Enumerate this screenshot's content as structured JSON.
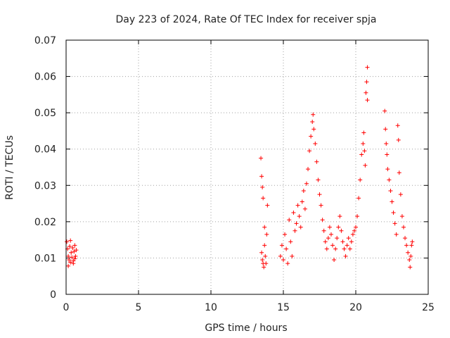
{
  "chart_data": {
    "type": "scatter",
    "title": "Day 223 of 2024, Rate Of TEC Index for receiver spja",
    "xlabel": "GPS time / hours",
    "ylabel": "ROTI / TECUs",
    "xlim": [
      0,
      25
    ],
    "ylim": [
      0,
      0.07
    ],
    "x_ticks": [
      0,
      5,
      10,
      15,
      20,
      25
    ],
    "x_tick_labels": [
      "0",
      "5",
      "10",
      "15",
      "20",
      "25"
    ],
    "y_ticks": [
      0,
      0.01,
      0.02,
      0.03,
      0.04,
      0.05,
      0.06,
      0.07
    ],
    "y_tick_labels": [
      "0",
      "0.01",
      "0.02",
      "0.03",
      "0.04",
      "0.05",
      "0.06",
      "0.07"
    ],
    "grid": true,
    "legend": "none",
    "marker": "+",
    "colors": {
      "series": "#ff0000",
      "grid": "#a0a0a0",
      "frame": "#000000"
    },
    "series": [
      {
        "points": [
          [
            0.05,
            0.0145
          ],
          [
            0.1,
            0.0125
          ],
          [
            0.15,
            0.0105
          ],
          [
            0.2,
            0.0095
          ],
          [
            0.25,
            0.0132
          ],
          [
            0.3,
            0.0088
          ],
          [
            0.35,
            0.0115
          ],
          [
            0.4,
            0.0102
          ],
          [
            0.45,
            0.0128
          ],
          [
            0.5,
            0.0092
          ],
          [
            0.55,
            0.0118
          ],
          [
            0.6,
            0.0135
          ],
          [
            0.65,
            0.0105
          ],
          [
            0.7,
            0.0122
          ],
          [
            0.15,
            0.0078
          ],
          [
            0.3,
            0.0148
          ],
          [
            0.5,
            0.0085
          ],
          [
            0.6,
            0.0098
          ],
          [
            13.45,
            0.0375
          ],
          [
            13.5,
            0.0325
          ],
          [
            13.55,
            0.0295
          ],
          [
            13.6,
            0.0265
          ],
          [
            13.5,
            0.0115
          ],
          [
            13.55,
            0.0095
          ],
          [
            13.6,
            0.0085
          ],
          [
            13.65,
            0.0075
          ],
          [
            13.7,
            0.0135
          ],
          [
            13.75,
            0.0105
          ],
          [
            13.8,
            0.0085
          ],
          [
            13.85,
            0.0165
          ],
          [
            13.9,
            0.0245
          ],
          [
            13.7,
            0.0185
          ],
          [
            14.8,
            0.0105
          ],
          [
            14.9,
            0.0135
          ],
          [
            15.0,
            0.0095
          ],
          [
            15.1,
            0.0165
          ],
          [
            15.2,
            0.0125
          ],
          [
            15.3,
            0.0085
          ],
          [
            15.4,
            0.0205
          ],
          [
            15.5,
            0.0145
          ],
          [
            15.6,
            0.0105
          ],
          [
            15.7,
            0.0225
          ],
          [
            15.8,
            0.0175
          ],
          [
            15.9,
            0.0195
          ],
          [
            16.0,
            0.0245
          ],
          [
            16.1,
            0.0215
          ],
          [
            16.2,
            0.0185
          ],
          [
            16.3,
            0.0255
          ],
          [
            16.4,
            0.0285
          ],
          [
            16.5,
            0.0235
          ],
          [
            16.6,
            0.0305
          ],
          [
            16.7,
            0.0345
          ],
          [
            16.8,
            0.0395
          ],
          [
            16.9,
            0.0435
          ],
          [
            17.0,
            0.0475
          ],
          [
            17.05,
            0.0495
          ],
          [
            17.1,
            0.0455
          ],
          [
            17.2,
            0.0415
          ],
          [
            17.3,
            0.0365
          ],
          [
            17.4,
            0.0315
          ],
          [
            17.5,
            0.0275
          ],
          [
            17.6,
            0.0245
          ],
          [
            17.7,
            0.0205
          ],
          [
            17.8,
            0.0175
          ],
          [
            17.9,
            0.0145
          ],
          [
            18.0,
            0.0125
          ],
          [
            18.1,
            0.0155
          ],
          [
            18.2,
            0.0185
          ],
          [
            18.3,
            0.0165
          ],
          [
            18.4,
            0.0135
          ],
          [
            18.5,
            0.0095
          ],
          [
            18.6,
            0.0125
          ],
          [
            18.7,
            0.0155
          ],
          [
            18.8,
            0.0185
          ],
          [
            18.9,
            0.0215
          ],
          [
            19.0,
            0.0175
          ],
          [
            19.1,
            0.0145
          ],
          [
            19.2,
            0.0125
          ],
          [
            19.3,
            0.0105
          ],
          [
            19.4,
            0.0135
          ],
          [
            19.5,
            0.0155
          ],
          [
            19.6,
            0.0125
          ],
          [
            19.7,
            0.0145
          ],
          [
            19.8,
            0.0165
          ],
          [
            19.9,
            0.0175
          ],
          [
            20.0,
            0.0185
          ],
          [
            20.1,
            0.0215
          ],
          [
            20.2,
            0.0265
          ],
          [
            20.3,
            0.0315
          ],
          [
            20.4,
            0.0385
          ],
          [
            20.5,
            0.0415
          ],
          [
            20.55,
            0.0445
          ],
          [
            20.6,
            0.0395
          ],
          [
            20.65,
            0.0355
          ],
          [
            20.7,
            0.0555
          ],
          [
            20.75,
            0.0585
          ],
          [
            20.8,
            0.0625
          ],
          [
            20.8,
            0.0535
          ],
          [
            22.0,
            0.0505
          ],
          [
            22.05,
            0.0455
          ],
          [
            22.1,
            0.0415
          ],
          [
            22.15,
            0.0385
          ],
          [
            22.2,
            0.0345
          ],
          [
            22.3,
            0.0315
          ],
          [
            22.4,
            0.0285
          ],
          [
            22.5,
            0.0255
          ],
          [
            22.6,
            0.0225
          ],
          [
            22.7,
            0.0195
          ],
          [
            22.8,
            0.0165
          ],
          [
            22.9,
            0.0465
          ],
          [
            22.95,
            0.0425
          ],
          [
            23.0,
            0.0335
          ],
          [
            23.1,
            0.0275
          ],
          [
            23.2,
            0.0215
          ],
          [
            23.3,
            0.0185
          ],
          [
            23.4,
            0.0155
          ],
          [
            23.5,
            0.0135
          ],
          [
            23.6,
            0.0115
          ],
          [
            23.7,
            0.0095
          ],
          [
            23.75,
            0.0075
          ],
          [
            23.8,
            0.0105
          ],
          [
            23.85,
            0.0135
          ],
          [
            23.9,
            0.0145
          ]
        ]
      }
    ]
  }
}
